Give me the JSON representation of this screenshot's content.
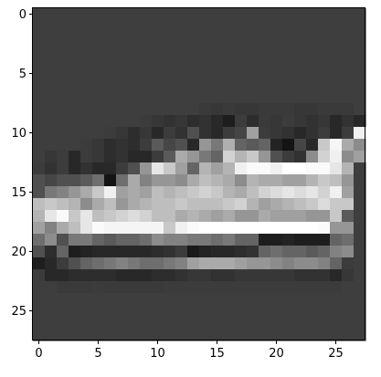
{
  "chart_data": {
    "type": "heatmap",
    "title": "",
    "xlabel": "",
    "ylabel": "",
    "colormap": "gray",
    "rows": 28,
    "cols": 28,
    "xlim": [
      -0.5,
      27.5
    ],
    "ylim": [
      27.5,
      -0.5
    ],
    "xticks": [
      0,
      5,
      10,
      15,
      20,
      25
    ],
    "yticks": [
      0,
      5,
      10,
      15,
      20,
      25
    ],
    "xtick_labels": [
      "0",
      "5",
      "10",
      "15",
      "20",
      "25"
    ],
    "ytick_labels": [
      "0",
      "5",
      "10",
      "15",
      "20",
      "25"
    ],
    "background_value": 62,
    "rows_nonbackground": [
      {
        "row": 8,
        "start": 14,
        "values": [
          58,
          55,
          58,
          55,
          55,
          58,
          58,
          58,
          55,
          55,
          58,
          58,
          58
        ]
      },
      {
        "row": 9,
        "start": 9,
        "values": [
          60,
          55,
          50,
          55,
          45,
          50,
          40,
          30,
          60,
          45,
          58,
          55,
          60,
          55,
          50,
          55,
          40,
          50,
          40
        ]
      },
      {
        "row": 10,
        "start": 6,
        "values": [
          60,
          55,
          45,
          55,
          40,
          60,
          50,
          80,
          50,
          40,
          60,
          70,
          160,
          60,
          55,
          50,
          40,
          50,
          60,
          40,
          60,
          240,
          40,
          120
        ]
      },
      {
        "row": 11,
        "start": 4,
        "values": [
          60,
          55,
          45,
          50,
          45,
          60,
          90,
          70,
          80,
          40,
          150,
          120,
          175,
          100,
          90,
          100,
          35,
          20,
          70,
          40,
          200,
          245,
          170,
          140
        ]
      },
      {
        "row": 12,
        "start": 1,
        "values": [
          55,
          60,
          40,
          60,
          55,
          45,
          50,
          40,
          40,
          60,
          90,
          170,
          150,
          120,
          100,
          210,
          180,
          200,
          150,
          80,
          60,
          50,
          140,
          210,
          240,
          140,
          160
        ]
      },
      {
        "row": 13,
        "start": 0,
        "values": [
          60,
          50,
          60,
          40,
          50,
          40,
          40,
          60,
          80,
          150,
          230,
          200,
          160,
          100,
          180,
          160,
          180,
          240,
          250,
          250,
          240,
          255,
          255,
          250,
          250,
          230,
          180
        ]
      },
      {
        "row": 14,
        "start": 0,
        "values": [
          80,
          70,
          80,
          80,
          90,
          110,
          20,
          110,
          170,
          130,
          150,
          150,
          140,
          170,
          190,
          180,
          170,
          140,
          180,
          170,
          170,
          160,
          160,
          180,
          200,
          190,
          150
        ]
      },
      {
        "row": 15,
        "start": 0,
        "values": [
          80,
          120,
          130,
          150,
          170,
          200,
          240,
          160,
          170,
          160,
          190,
          180,
          190,
          200,
          210,
          200,
          180,
          170,
          190,
          210,
          220,
          230,
          220,
          230,
          210,
          240,
          160
        ]
      },
      {
        "row": 16,
        "start": 0,
        "values": [
          190,
          200,
          190,
          180,
          140,
          170,
          190,
          150,
          170,
          180,
          190,
          190,
          200,
          190,
          190,
          190,
          200,
          210,
          180,
          160,
          170,
          180,
          190,
          200,
          220,
          200,
          200
        ]
      },
      {
        "row": 17,
        "start": 0,
        "values": [
          180,
          230,
          250,
          200,
          230,
          190,
          200,
          210,
          220,
          210,
          190,
          190,
          170,
          180,
          170,
          160,
          170,
          150,
          150,
          170,
          160,
          160,
          160,
          150,
          150,
          200,
          90
        ]
      },
      {
        "row": 18,
        "start": 0,
        "values": [
          160,
          130,
          170,
          190,
          230,
          250,
          245,
          245,
          245,
          245,
          245,
          200,
          240,
          250,
          255,
          255,
          255,
          255,
          255,
          255,
          255,
          255,
          255,
          255,
          250,
          150,
          150
        ]
      },
      {
        "row": 19,
        "start": 0,
        "values": [
          110,
          140,
          80,
          120,
          120,
          100,
          90,
          100,
          100,
          110,
          140,
          130,
          130,
          120,
          120,
          110,
          120,
          100,
          100,
          30,
          30,
          35,
          30,
          30,
          30,
          100,
          110
        ]
      },
      {
        "row": 20,
        "start": 0,
        "values": [
          80,
          45,
          100,
          30,
          35,
          40,
          40,
          40,
          40,
          40,
          45,
          50,
          60,
          25,
          35,
          40,
          40,
          45,
          50,
          100,
          110,
          100,
          100,
          90,
          100,
          130,
          140
        ]
      },
      {
        "row": 21,
        "start": 0,
        "values": [
          30,
          40,
          60,
          80,
          100,
          110,
          120,
          130,
          120,
          110,
          110,
          120,
          130,
          160,
          170,
          170,
          170,
          160,
          150,
          150,
          140,
          130,
          140,
          140,
          130,
          100,
          60
        ]
      },
      {
        "row": 22,
        "start": 0,
        "values": [
          60,
          40,
          40,
          45,
          45,
          45,
          45,
          40,
          40,
          40,
          45,
          45,
          50,
          55,
          55,
          50,
          50,
          55,
          55,
          55,
          55,
          55,
          50,
          50,
          50,
          40,
          55
        ]
      },
      {
        "row": 23,
        "start": 2,
        "values": [
          58,
          58,
          58,
          60,
          58,
          58,
          58,
          58,
          58,
          60,
          60,
          60,
          60,
          60,
          60,
          60,
          60,
          60,
          60,
          60,
          60,
          60,
          60,
          60
        ]
      }
    ]
  }
}
